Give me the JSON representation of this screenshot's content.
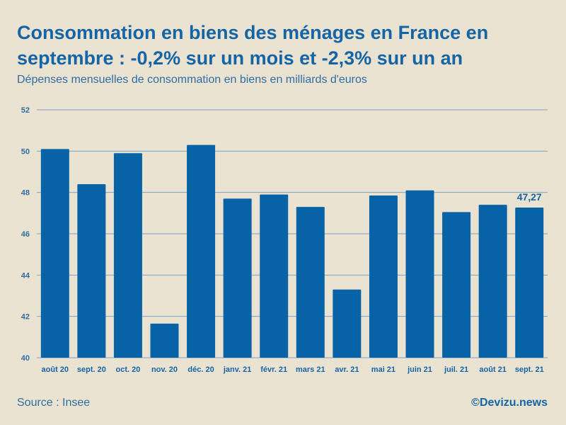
{
  "title": "Consommation en biens des ménages en France en septembre : -0,2% sur un mois et -2,3% sur un an",
  "subtitle": "Dépenses mensuelles de consommation en biens en milliards d'euros",
  "source": "Source : Insee",
  "credit": "©Devizu.news",
  "chart_data": {
    "type": "bar",
    "title": "Consommation en biens des ménages en France en septembre : -0,2% sur un mois et -2,3% sur un an",
    "xlabel": "",
    "ylabel": "Dépenses mensuelles de consommation en biens en milliards d'euros",
    "ylim": [
      40,
      52
    ],
    "yticks": [
      40,
      42,
      44,
      46,
      48,
      50,
      52
    ],
    "categories": [
      "août 20",
      "sept. 20",
      "oct. 20",
      "nov. 20",
      "déc. 20",
      "janv. 21",
      "févr. 21",
      "mars 21",
      "avr. 21",
      "mai 21",
      "juin 21",
      "juil. 21",
      "août 21",
      "sept. 21"
    ],
    "values": [
      50.1,
      48.4,
      49.9,
      41.65,
      50.3,
      47.7,
      47.9,
      47.3,
      43.3,
      47.85,
      48.1,
      47.05,
      47.4,
      47.27
    ],
    "data_labels": [
      {
        "index": 13,
        "text": "47,27"
      }
    ],
    "bar_color": "#0763a5",
    "grid_color": "#7ba2c6",
    "tick_color": "#2f6ea3",
    "label_color": "#1565a6",
    "grid": true,
    "legend": "none"
  }
}
